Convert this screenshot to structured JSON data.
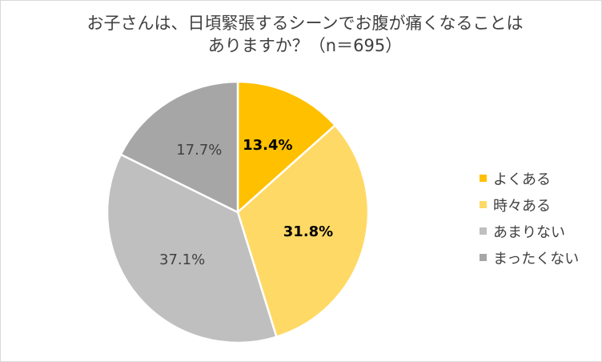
{
  "colors": {
    "background": "#ffffff",
    "border": "#d9d9d9",
    "text": "#404040"
  },
  "chart_data": {
    "type": "pie",
    "title_lines": [
      "お子さんは、日頃緊張するシーンでお腹が痛くなることは",
      "ありますか？（n＝695）"
    ],
    "categories": [
      "よくある",
      "時々ある",
      "あまりない",
      "まったくない"
    ],
    "values": [
      13.4,
      31.8,
      37.1,
      17.7
    ],
    "labels": [
      "13.4%",
      "31.8%",
      "37.1%",
      "17.7%"
    ],
    "colors": [
      "#ffc000",
      "#ffd966",
      "#bfbfbf",
      "#a6a6a6"
    ],
    "label_bold": [
      true,
      true,
      false,
      false
    ],
    "start": "12 o'clock",
    "direction": "clockwise",
    "legend_position": "right"
  }
}
